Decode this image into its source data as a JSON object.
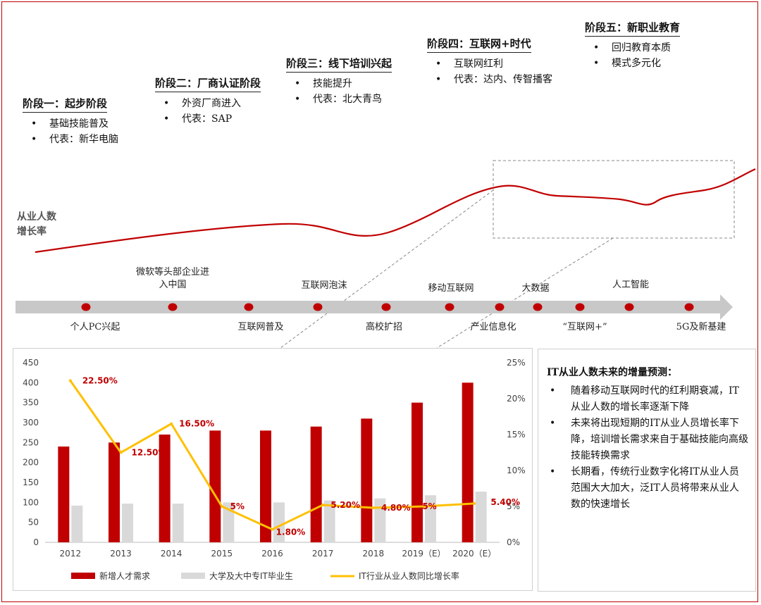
{
  "stages": [
    {
      "title": "阶段一：起步阶段",
      "bullets": [
        "基础技能普及",
        "代表：新华电脑"
      ]
    },
    {
      "title": "阶段二：厂商认证阶段",
      "bullets": [
        "外资厂商进入",
        "代表：SAP"
      ]
    },
    {
      "title": "阶段三：线下培训兴起",
      "bullets": [
        "技能提升",
        "代表：北大青鸟"
      ]
    },
    {
      "title": "阶段四：互联网+时代",
      "bullets": [
        "互联网红利",
        "代表：达内、传智播客"
      ]
    },
    {
      "title": "阶段五：新职业教育",
      "bullets": [
        "回归教育本质",
        "模式多元化"
      ]
    }
  ],
  "curve_label": "从业人数\n增长率",
  "timeline": {
    "events_above": [
      "微软等头部企业进\n入中国",
      "互联网泡沫",
      "移动互联网",
      "大数据",
      "人工智能"
    ],
    "events_below": [
      "个人PC兴起",
      "互联网普及",
      "高校扩招",
      "产业信息化",
      "“互联网+”",
      "5G及新基建"
    ],
    "axis_color": "#c8c8c8",
    "dot_color": "#c00000"
  },
  "forecast": {
    "title": "IT从业人数未来的增量预测：",
    "bullets": [
      "随着移动互联网时代的红利期衰减，IT从业人数的增长率逐渐下降",
      "未来将出现短期的IT从业人员增长率下降，培训增长需求来自于基础技能向高级技能转换需求",
      "长期看，传统行业数字化将IT从业人员范围大大加大，泛IT人员将带来从业人数的快速增长"
    ]
  },
  "chart_data": {
    "type": "bar",
    "categories": [
      "2012",
      "2013",
      "2014",
      "2015",
      "2016",
      "2017",
      "2018",
      "2019（E）",
      "2020（E）"
    ],
    "series": [
      {
        "name": "新增人才需求",
        "type": "bar",
        "axis": "left",
        "color": "#c00000",
        "values": [
          240,
          250,
          270,
          280,
          280,
          290,
          310,
          350,
          400
        ]
      },
      {
        "name": "大学及大中专IT毕业生",
        "type": "bar",
        "axis": "left",
        "color": "#d9d9d9",
        "values": [
          92,
          97,
          97,
          100,
          100,
          105,
          110,
          118,
          127
        ]
      },
      {
        "name": "IT行业从业人数同比增长率",
        "type": "line",
        "axis": "right",
        "color": "#ffc000",
        "values": [
          22.5,
          12.5,
          16.5,
          5,
          1.8,
          5.2,
          4.8,
          5,
          5.4
        ],
        "labels": [
          "22.50%",
          "12.50%",
          "16.50%",
          "5%",
          "1.80%",
          "5.20%",
          "4.80%",
          "5%",
          "5.40%"
        ],
        "label_color": "#c00000"
      }
    ],
    "left_axis": {
      "min": 0,
      "max": 450,
      "ticks": [
        "0",
        "50",
        "100",
        "150",
        "200",
        "250",
        "300",
        "350",
        "400",
        "450"
      ]
    },
    "right_axis": {
      "min": 0,
      "max": 25,
      "ticks": [
        "0%",
        "5%",
        "10%",
        "15%",
        "20%",
        "25%"
      ]
    },
    "grid": false,
    "legend": "bottom"
  }
}
